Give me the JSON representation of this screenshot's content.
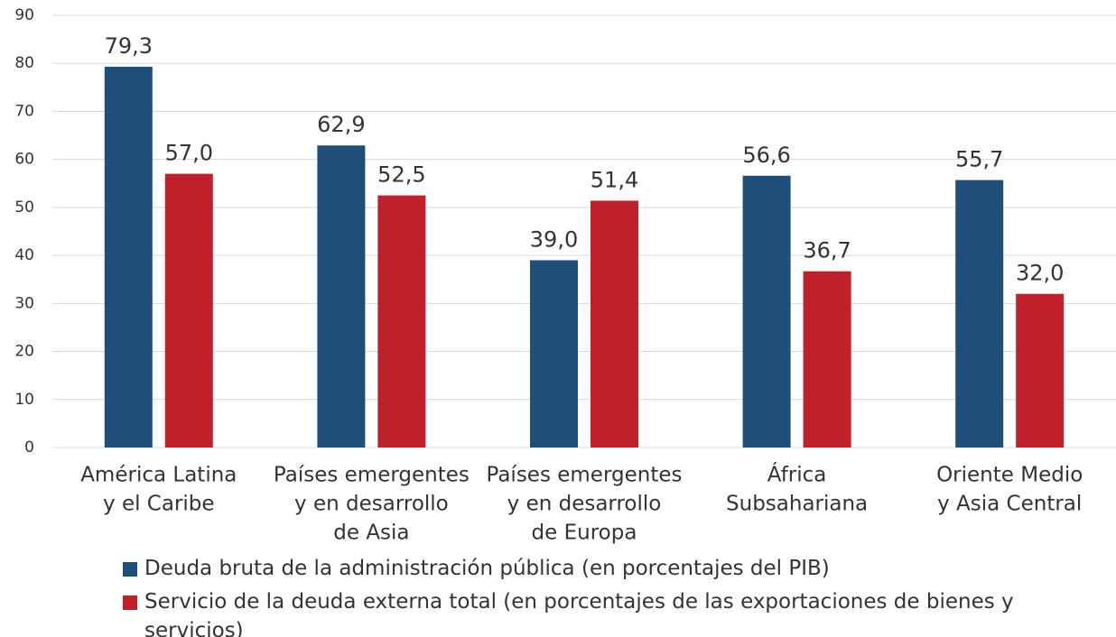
{
  "chart_data": {
    "type": "bar",
    "categories": [
      [
        "América Latina",
        "y el Caribe"
      ],
      [
        "Países emergentes",
        "y en desarrollo",
        "de Asia"
      ],
      [
        "Países emergentes",
        "y en desarrollo",
        "de Europa"
      ],
      [
        "África",
        "Subsahariana"
      ],
      [
        "Oriente Medio",
        "y Asia Central"
      ]
    ],
    "series": [
      {
        "name": "Deuda bruta de la administración pública (en porcentajes del PIB)",
        "color": "#1f4e79",
        "values": [
          79.3,
          62.9,
          39.0,
          56.6,
          55.7
        ],
        "value_labels": [
          "79,3",
          "62,9",
          "39,0",
          "56,6",
          "55,7"
        ]
      },
      {
        "name": "Servicio de la deuda externa total (en porcentajes de las exportaciones de bienes y servicios)",
        "color": "#c0202a",
        "values": [
          57.0,
          52.5,
          51.4,
          36.7,
          32.0
        ],
        "value_labels": [
          "57,0",
          "52,5",
          "51,4",
          "36,7",
          "32,0"
        ]
      }
    ],
    "ylim": [
      0,
      90
    ],
    "yticks": [
      0,
      10,
      20,
      30,
      40,
      50,
      60,
      70,
      80,
      90
    ],
    "grid": true
  }
}
